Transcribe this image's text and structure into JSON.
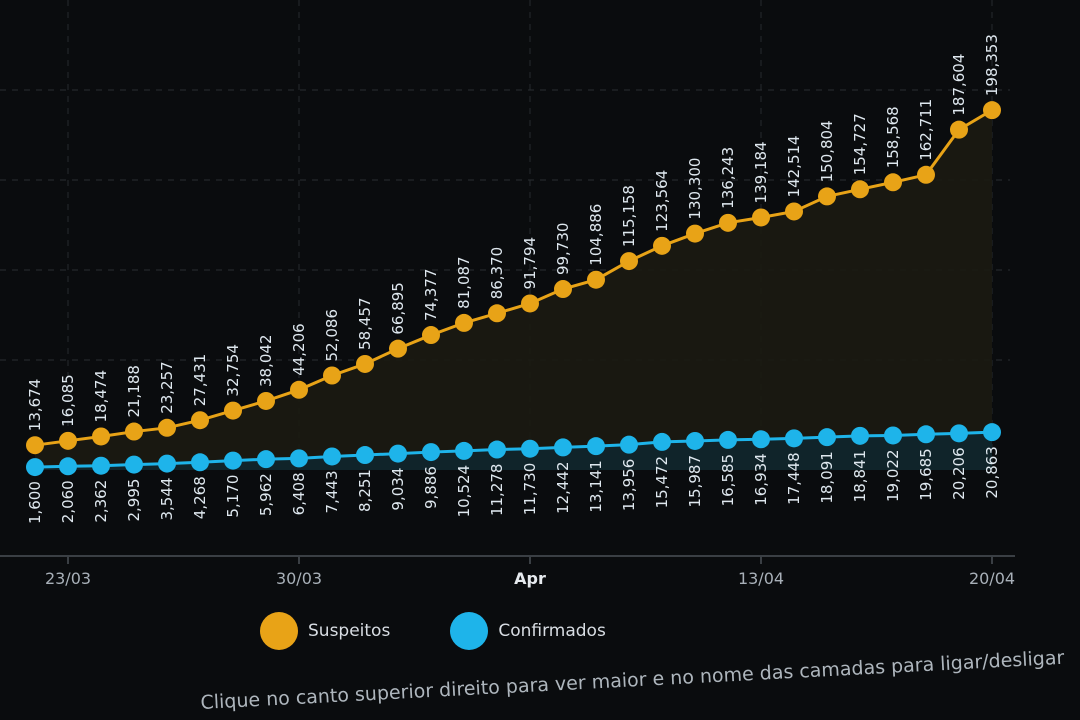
{
  "chart_data": {
    "type": "line",
    "title": "",
    "xlabel": "",
    "ylabel": "",
    "x": [
      "22/03",
      "23/03",
      "24/03",
      "25/03",
      "26/03",
      "27/03",
      "28/03",
      "29/03",
      "30/03",
      "31/03",
      "01/04",
      "02/04",
      "03/04",
      "04/04",
      "05/04",
      "06/04",
      "07/04",
      "08/04",
      "09/04",
      "10/04",
      "11/04",
      "12/04",
      "13/04",
      "14/04",
      "15/04",
      "16/04",
      "17/04",
      "18/04",
      "19/04",
      "20/04"
    ],
    "tick_labels": [
      {
        "at": "23/03",
        "label": "23/03"
      },
      {
        "at": "30/03",
        "label": "30/03"
      },
      {
        "at": "06/04",
        "label": "Apr"
      },
      {
        "at": "13/04",
        "label": "13/04"
      },
      {
        "at": "20/04",
        "label": "20/04"
      }
    ],
    "ylim": [
      0,
      210000
    ],
    "grid": true,
    "data_labels": true,
    "legend_placement": "bottom-left",
    "series": [
      {
        "name": "Suspeitos",
        "color": "#e8a317",
        "values": [
          13674,
          16085,
          18474,
          21188,
          23257,
          27431,
          32754,
          38042,
          44206,
          52086,
          58457,
          66895,
          74377,
          81087,
          86370,
          91794,
          99730,
          104886,
          115158,
          123564,
          130300,
          136243,
          139184,
          142514,
          150804,
          154727,
          158568,
          162711,
          187604,
          198353
        ]
      },
      {
        "name": "Confirmados",
        "color": "#1eb4ea",
        "values": [
          1600,
          2060,
          2362,
          2995,
          3544,
          4268,
          5170,
          5962,
          6408,
          7443,
          8251,
          9034,
          9886,
          10524,
          11278,
          11730,
          12442,
          13141,
          13956,
          15472,
          15987,
          16585,
          16934,
          17448,
          18091,
          18841,
          19022,
          19685,
          20206,
          20863
        ]
      }
    ]
  },
  "legend": {
    "items": [
      {
        "label": "Suspeitos",
        "color": "#e8a317"
      },
      {
        "label": "Confirmados",
        "color": "#1eb4ea"
      }
    ]
  },
  "footer_note": "Clique no canto superior direito para ver maior e no nome das camadas para ligar/desligar"
}
